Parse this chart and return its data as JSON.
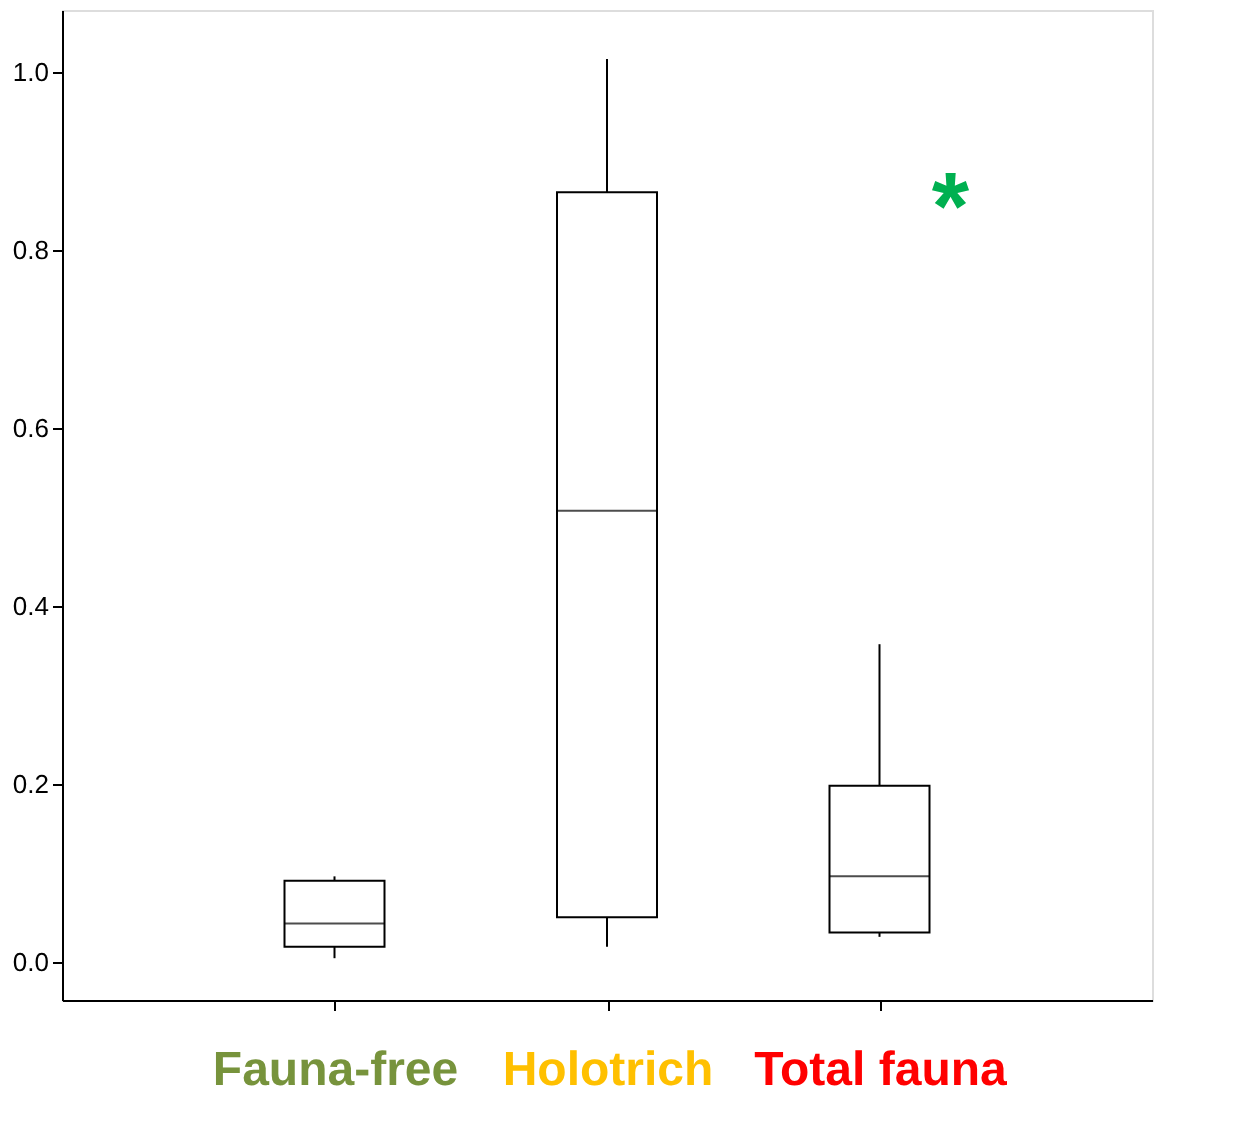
{
  "chart_data": {
    "type": "box",
    "categories": [
      "Fauna-free",
      "Holotrich",
      "Total fauna"
    ],
    "boxes": [
      {
        "low": 0.004,
        "q1": 0.017,
        "median": 0.043,
        "q3": 0.091,
        "high": 0.096
      },
      {
        "low": 0.017,
        "q1": 0.05,
        "median": 0.507,
        "q3": 0.865,
        "high": 1.015
      },
      {
        "low": 0.028,
        "q1": 0.033,
        "median": 0.096,
        "q3": 0.198,
        "high": 0.357
      }
    ],
    "ylim": [
      -0.043,
      1.07
    ],
    "yticks": [
      {
        "value": 0,
        "label": "0.0"
      },
      {
        "value": 0.2,
        "label": "0.2"
      },
      {
        "value": 0.4,
        "label": "0.4"
      },
      {
        "value": 0.6,
        "label": "0.6"
      },
      {
        "value": 0.8,
        "label": "0.8"
      },
      {
        "value": 1,
        "label": "1.0"
      }
    ],
    "annotations": [
      "*"
    ],
    "grid": false
  }
}
